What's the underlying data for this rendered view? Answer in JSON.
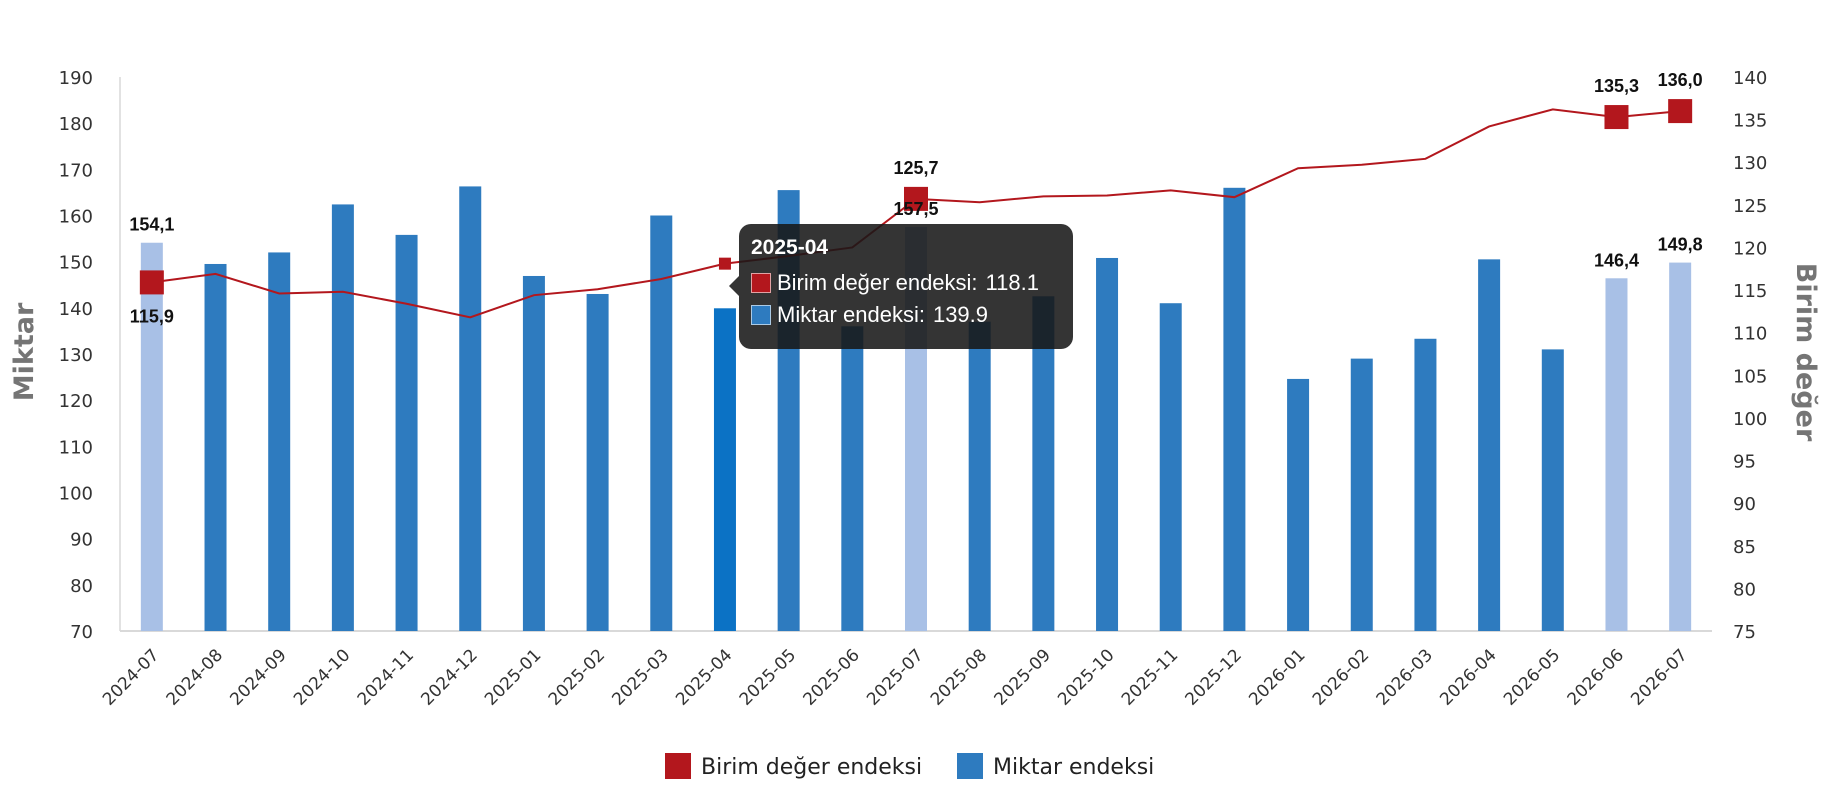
{
  "colors": {
    "line": "#b3171d",
    "bar": "#2e7bbf",
    "bar_highlight": "#a8c0e6",
    "bar_hover": "#0b72c5",
    "grid": "#d9d9d9",
    "axis_title": "#757575"
  },
  "axes": {
    "left_title": "Miktar",
    "right_title": "Birim değer",
    "left_ticks": [
      "190",
      "180",
      "170",
      "160",
      "150",
      "140",
      "130",
      "120",
      "110",
      "100",
      "90",
      "80",
      "70"
    ],
    "right_ticks": [
      "140",
      "135",
      "130",
      "125",
      "120",
      "115",
      "110",
      "105",
      "100",
      "95",
      "90",
      "85",
      "80",
      "75"
    ]
  },
  "legend": {
    "items": [
      {
        "label": "Birim değer endeksi",
        "color": "#b3171d"
      },
      {
        "label": "Miktar endeksi",
        "color": "#2e7bbf"
      }
    ]
  },
  "tooltip": {
    "title": "2025-04",
    "rows": [
      {
        "label": "Birim değer endeksi:",
        "value": "118.1",
        "color": "#b3171d"
      },
      {
        "label": "Miktar endeksi:",
        "value": "139.9",
        "color": "#2e7bbf"
      }
    ]
  },
  "chart_data": {
    "type": "bar",
    "categories": [
      "2024-07",
      "2024-08",
      "2024-09",
      "2024-10",
      "2024-11",
      "2024-12",
      "2025-01",
      "2025-02",
      "2025-03",
      "2025-04",
      "2025-05",
      "2025-06",
      "2025-07",
      "2025-08",
      "2025-09",
      "2025-10",
      "2025-11",
      "2025-12",
      "2026-01",
      "2026-02",
      "2026-03",
      "2026-04",
      "2026-05",
      "2026-06",
      "2026-07"
    ],
    "ylim_left": [
      70,
      190
    ],
    "ylim_right": [
      75,
      140
    ],
    "ylabel_left": "Miktar",
    "ylabel_right": "Birim değer",
    "grid": false,
    "legend_position": "bottom",
    "series": [
      {
        "name": "Miktar endeksi",
        "type": "bar",
        "axis": "left",
        "values": [
          154.1,
          149.5,
          152.0,
          162.4,
          155.8,
          166.3,
          146.9,
          143.0,
          160.0,
          139.9,
          165.5,
          136.0,
          157.5,
          137.0,
          142.5,
          150.8,
          141.0,
          166.0,
          124.6,
          129.0,
          133.3,
          150.5,
          131.0,
          146.4,
          149.8
        ],
        "highlighted": [
          0,
          12,
          23,
          24
        ],
        "data_labels": [
          {
            "index": 0,
            "text": "154,1"
          },
          {
            "index": 12,
            "text": "157,5"
          },
          {
            "index": 23,
            "text": "146,4"
          },
          {
            "index": 24,
            "text": "149,8"
          }
        ]
      },
      {
        "name": "Birim değer endeksi",
        "type": "line",
        "axis": "right",
        "values": [
          115.9,
          116.9,
          114.6,
          114.8,
          113.4,
          111.8,
          114.4,
          115.1,
          116.3,
          118.1,
          119.0,
          120.0,
          125.7,
          125.3,
          126.0,
          126.1,
          126.7,
          125.9,
          129.3,
          129.7,
          130.4,
          134.2,
          136.2,
          135.3,
          136.0
        ],
        "markers": [
          0,
          12,
          23,
          24
        ],
        "data_labels": [
          {
            "index": 0,
            "text": "115,9"
          },
          {
            "index": 12,
            "text": "125,7"
          },
          {
            "index": 23,
            "text": "135,3"
          },
          {
            "index": 24,
            "text": "136,0"
          }
        ]
      }
    ]
  }
}
